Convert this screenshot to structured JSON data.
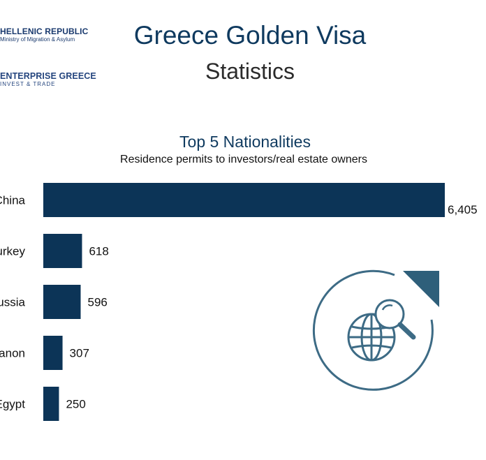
{
  "header": {
    "logo_primary": {
      "title": "HELLENIC REPUBLIC",
      "subtitle": "Ministry of Migration & Asylum"
    },
    "logo_secondary": {
      "title": "ENTERPRISE GREECE",
      "subtitle": "INVEST & TRADE"
    },
    "title": "Greece Golden Visa",
    "subtitle": "Statistics"
  },
  "chart_data": {
    "type": "bar",
    "orientation": "horizontal",
    "title": "Top 5 Nationalities",
    "subtitle": "Residence permits to investors/real estate owners",
    "categories": [
      "China",
      "Turkey",
      "Russia",
      "Lebanon",
      "Egypt"
    ],
    "values": [
      6405,
      618,
      596,
      307,
      250
    ],
    "value_labels": [
      "6,405",
      "618",
      "596",
      "307",
      "250"
    ],
    "xlabel": "",
    "ylabel": "",
    "grid": false,
    "legend": "none"
  },
  "colors": {
    "bar": "#0c3457",
    "title": "#0f3a5f",
    "globe": "#3d6b85",
    "accent": "#2e5f7a"
  },
  "icons": {
    "globe": "globe-magnifier-icon"
  }
}
